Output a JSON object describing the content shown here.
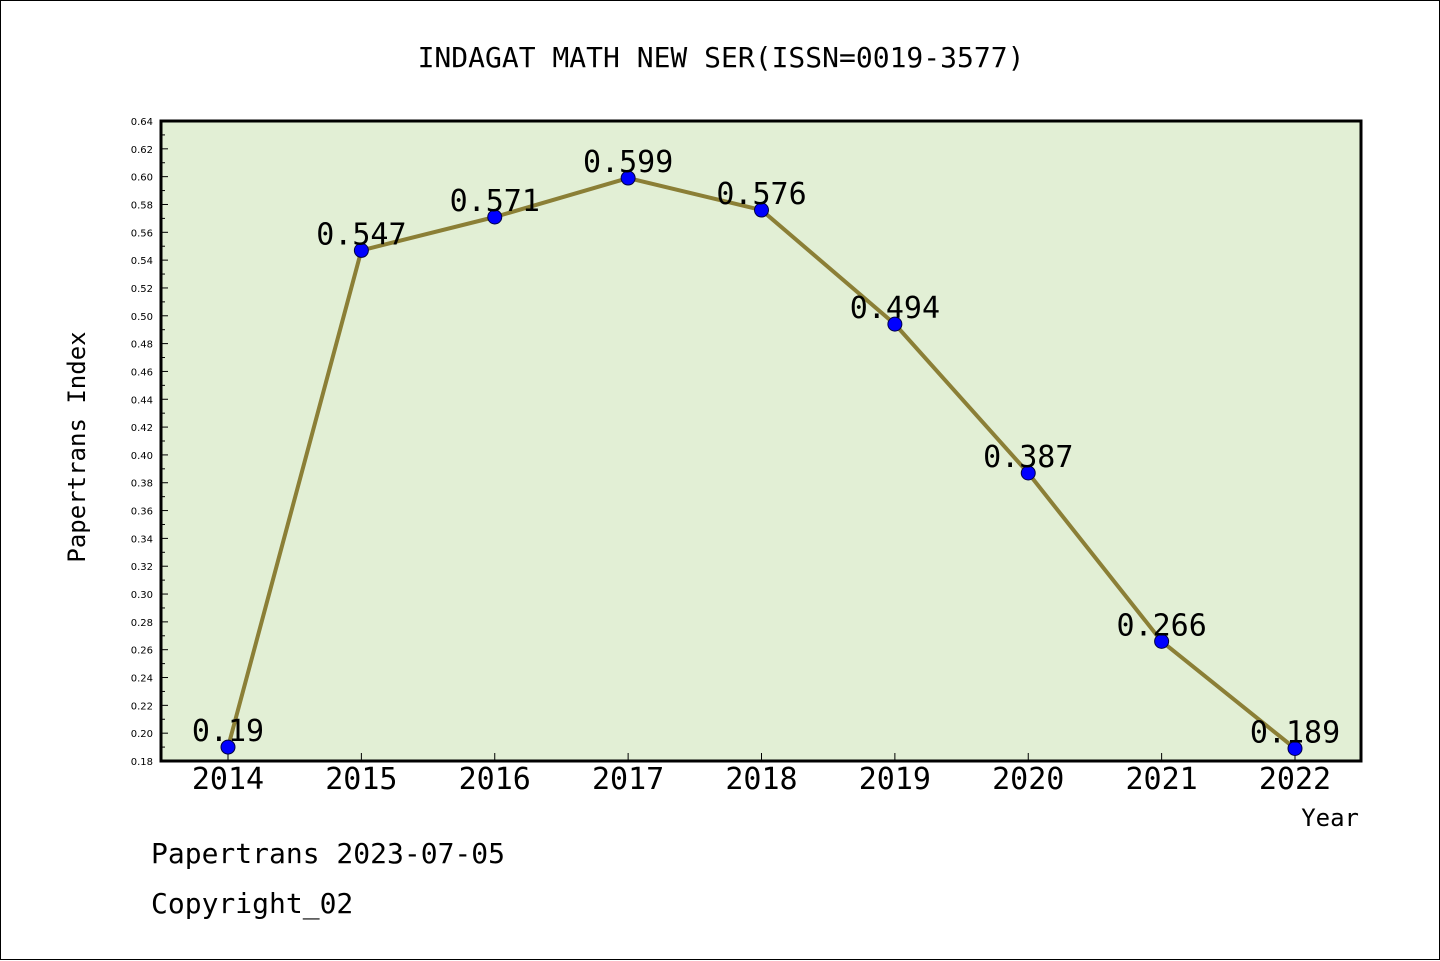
{
  "footer": {
    "line1": "Papertrans 2023-07-05",
    "line2": "Copyright_02"
  },
  "colors": {
    "plot_background": "#e2efd5",
    "line": "#8b7f36",
    "marker": "#0000ff"
  },
  "chart_data": {
    "type": "line",
    "title": "INDAGAT MATH NEW SER(ISSN=0019-3577)",
    "xlabel": "Year",
    "ylabel": "Papertrans Index",
    "categories": [
      "2014",
      "2015",
      "2016",
      "2017",
      "2018",
      "2019",
      "2020",
      "2021",
      "2022"
    ],
    "series": [
      {
        "values": [
          0.19,
          0.547,
          0.571,
          0.599,
          0.576,
          0.494,
          0.387,
          0.266,
          0.189
        ],
        "labels": [
          "0.19",
          "0.547",
          "0.571",
          "0.599",
          "0.576",
          "0.494",
          "0.387",
          "0.266",
          "0.189"
        ]
      }
    ],
    "ylim": [
      0.18,
      0.64
    ],
    "yticks": [
      "0.18",
      "0.20",
      "0.22",
      "0.24",
      "0.26",
      "0.28",
      "0.30",
      "0.32",
      "0.34",
      "0.36",
      "0.38",
      "0.40",
      "0.42",
      "0.44",
      "0.46",
      "0.48",
      "0.50",
      "0.52",
      "0.54",
      "0.56",
      "0.58",
      "0.60",
      "0.62",
      "0.64"
    ],
    "grid": false,
    "legend": "none"
  }
}
